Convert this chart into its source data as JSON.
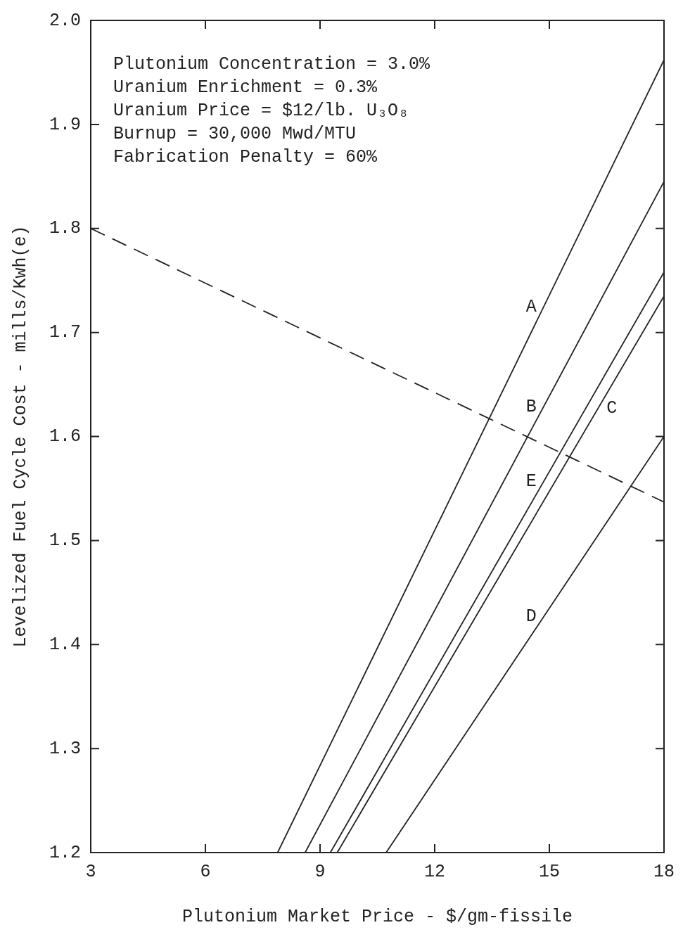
{
  "chart_data": {
    "type": "line",
    "xlabel": "Plutonium Market Price - $/gm-fissile",
    "ylabel": "Levelized Fuel Cycle Cost - mills/Kwh(e)",
    "xlim": [
      3,
      18
    ],
    "xticks": [
      3,
      6,
      9,
      12,
      15,
      18
    ],
    "ylim": [
      1.2,
      2.0
    ],
    "yticks": [
      1.2,
      1.3,
      1.4,
      1.5,
      1.6,
      1.7,
      1.8,
      1.9,
      {
        "value": 2.0,
        "label": "2.0"
      }
    ],
    "legend": false,
    "marker": "none",
    "series": [
      {
        "name": "A",
        "color": "#222222",
        "x": [
          7.89,
          18
        ],
        "values": [
          1.2,
          1.962
        ]
      },
      {
        "name": "B",
        "color": "#222222",
        "x": [
          8.61,
          18
        ],
        "values": [
          1.2,
          1.845
        ]
      },
      {
        "name": "E",
        "color": "#222222",
        "x": [
          9.27,
          18
        ],
        "values": [
          1.2,
          1.758
        ]
      },
      {
        "name": "C",
        "color": "#222222",
        "x": [
          9.45,
          18
        ],
        "values": [
          1.2,
          1.735
        ]
      },
      {
        "name": "D",
        "color": "#222222",
        "x": [
          10.73,
          18
        ],
        "values": [
          1.2,
          1.6
        ]
      },
      {
        "color": "#222222",
        "x": [
          3,
          18
        ],
        "values": [
          1.8,
          1.537
        ],
        "line_style": "dashed"
      }
    ],
    "annotations": [
      "Plutonium Concentration = 3.0%",
      "Uranium Enrichment = 0.3%",
      "Uranium Price = $12/lb. U₃O₈",
      "Burnup = 30,000 Mwd/MTU",
      "Fabrication Penalty = 60%"
    ]
  }
}
